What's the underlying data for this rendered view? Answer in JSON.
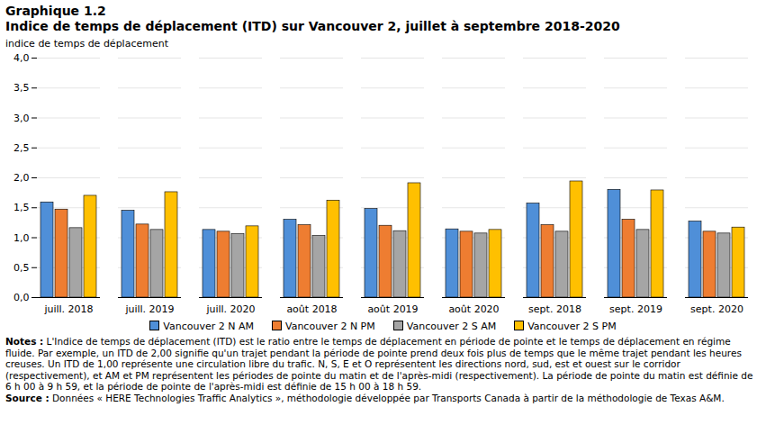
{
  "chart_data": {
    "type": "bar",
    "title": "Graphique  1.2",
    "subtitle": "Indice de temps de déplacement (ITD) sur Vancouver 2, juillet  à septembre 2018-2020",
    "y_label": "indice de temps de déplacement",
    "categories": [
      "juill. 2018",
      "juill. 2019",
      "juill. 2020",
      "août 2018",
      "août 2019",
      "août 2020",
      "sept. 2018",
      "sept. 2019",
      "sept. 2020"
    ],
    "series": [
      {
        "name": "Vancouver 2 N AM",
        "color": "#4f8fd8",
        "values": [
          1.59,
          1.45,
          1.13,
          1.3,
          1.48,
          1.14,
          1.57,
          1.8,
          1.27
        ]
      },
      {
        "name": "Vancouver 2 N PM",
        "color": "#ee7d31",
        "values": [
          1.47,
          1.22,
          1.1,
          1.21,
          1.2,
          1.1,
          1.21,
          1.3,
          1.1
        ]
      },
      {
        "name": "Vancouver 2 S AM",
        "color": "#a5a5a5",
        "values": [
          1.16,
          1.13,
          1.06,
          1.03,
          1.11,
          1.07,
          1.1,
          1.13,
          1.07
        ]
      },
      {
        "name": "Vancouver 2 S PM",
        "color": "#ffc000",
        "values": [
          1.7,
          1.76,
          1.19,
          1.62,
          1.91,
          1.13,
          1.94,
          1.79,
          1.17
        ]
      }
    ],
    "ylim": [
      0,
      4
    ],
    "yticks": [
      {
        "value": 0,
        "label": "0,0"
      },
      {
        "value": 0.5,
        "label": "0,5"
      },
      {
        "value": 1,
        "label": "1,0"
      },
      {
        "value": 1.5,
        "label": "1,5"
      },
      {
        "value": 2,
        "label": "2,0"
      },
      {
        "value": 2.5,
        "label": "2,5"
      },
      {
        "value": 3,
        "label": "3,0"
      },
      {
        "value": 3.5,
        "label": "3,5"
      },
      {
        "value": 4,
        "label": "4,0"
      }
    ],
    "grid": true,
    "legend": "bottom",
    "notes": {
      "label": "Notes :",
      "text": "L'Indice de temps de déplacement (ITD) est le ratio  entre le temps de déplacement en période de pointe et le temps de déplacement en régime fluide. Par exemple, un ITD de 2,00 signifie qu'un trajet pendant la période de pointe prend deux fois plus de temps que le même trajet pendant les heures creuses. Un ITD de 1,00 représente une circulation libre du trafic. N, S, E et O représentent les directions nord, sud, est et ouest sur le corridor (respectivement), et AM et PM représentent les périodes de pointe du matin et de l'après-midi (respectivement). La période de pointe du matin est définie de 6 h 00 à 9 h 59, et la période de pointe de l'après-midi est définie de 15 h 00 à 18 h 59."
    },
    "source": {
      "label": "Source :",
      "text": "Données « HERE Technologies Traffic Analytics », méthodologie développée par Transports Canada à partir de la méthodologie de Texas A&M."
    }
  }
}
